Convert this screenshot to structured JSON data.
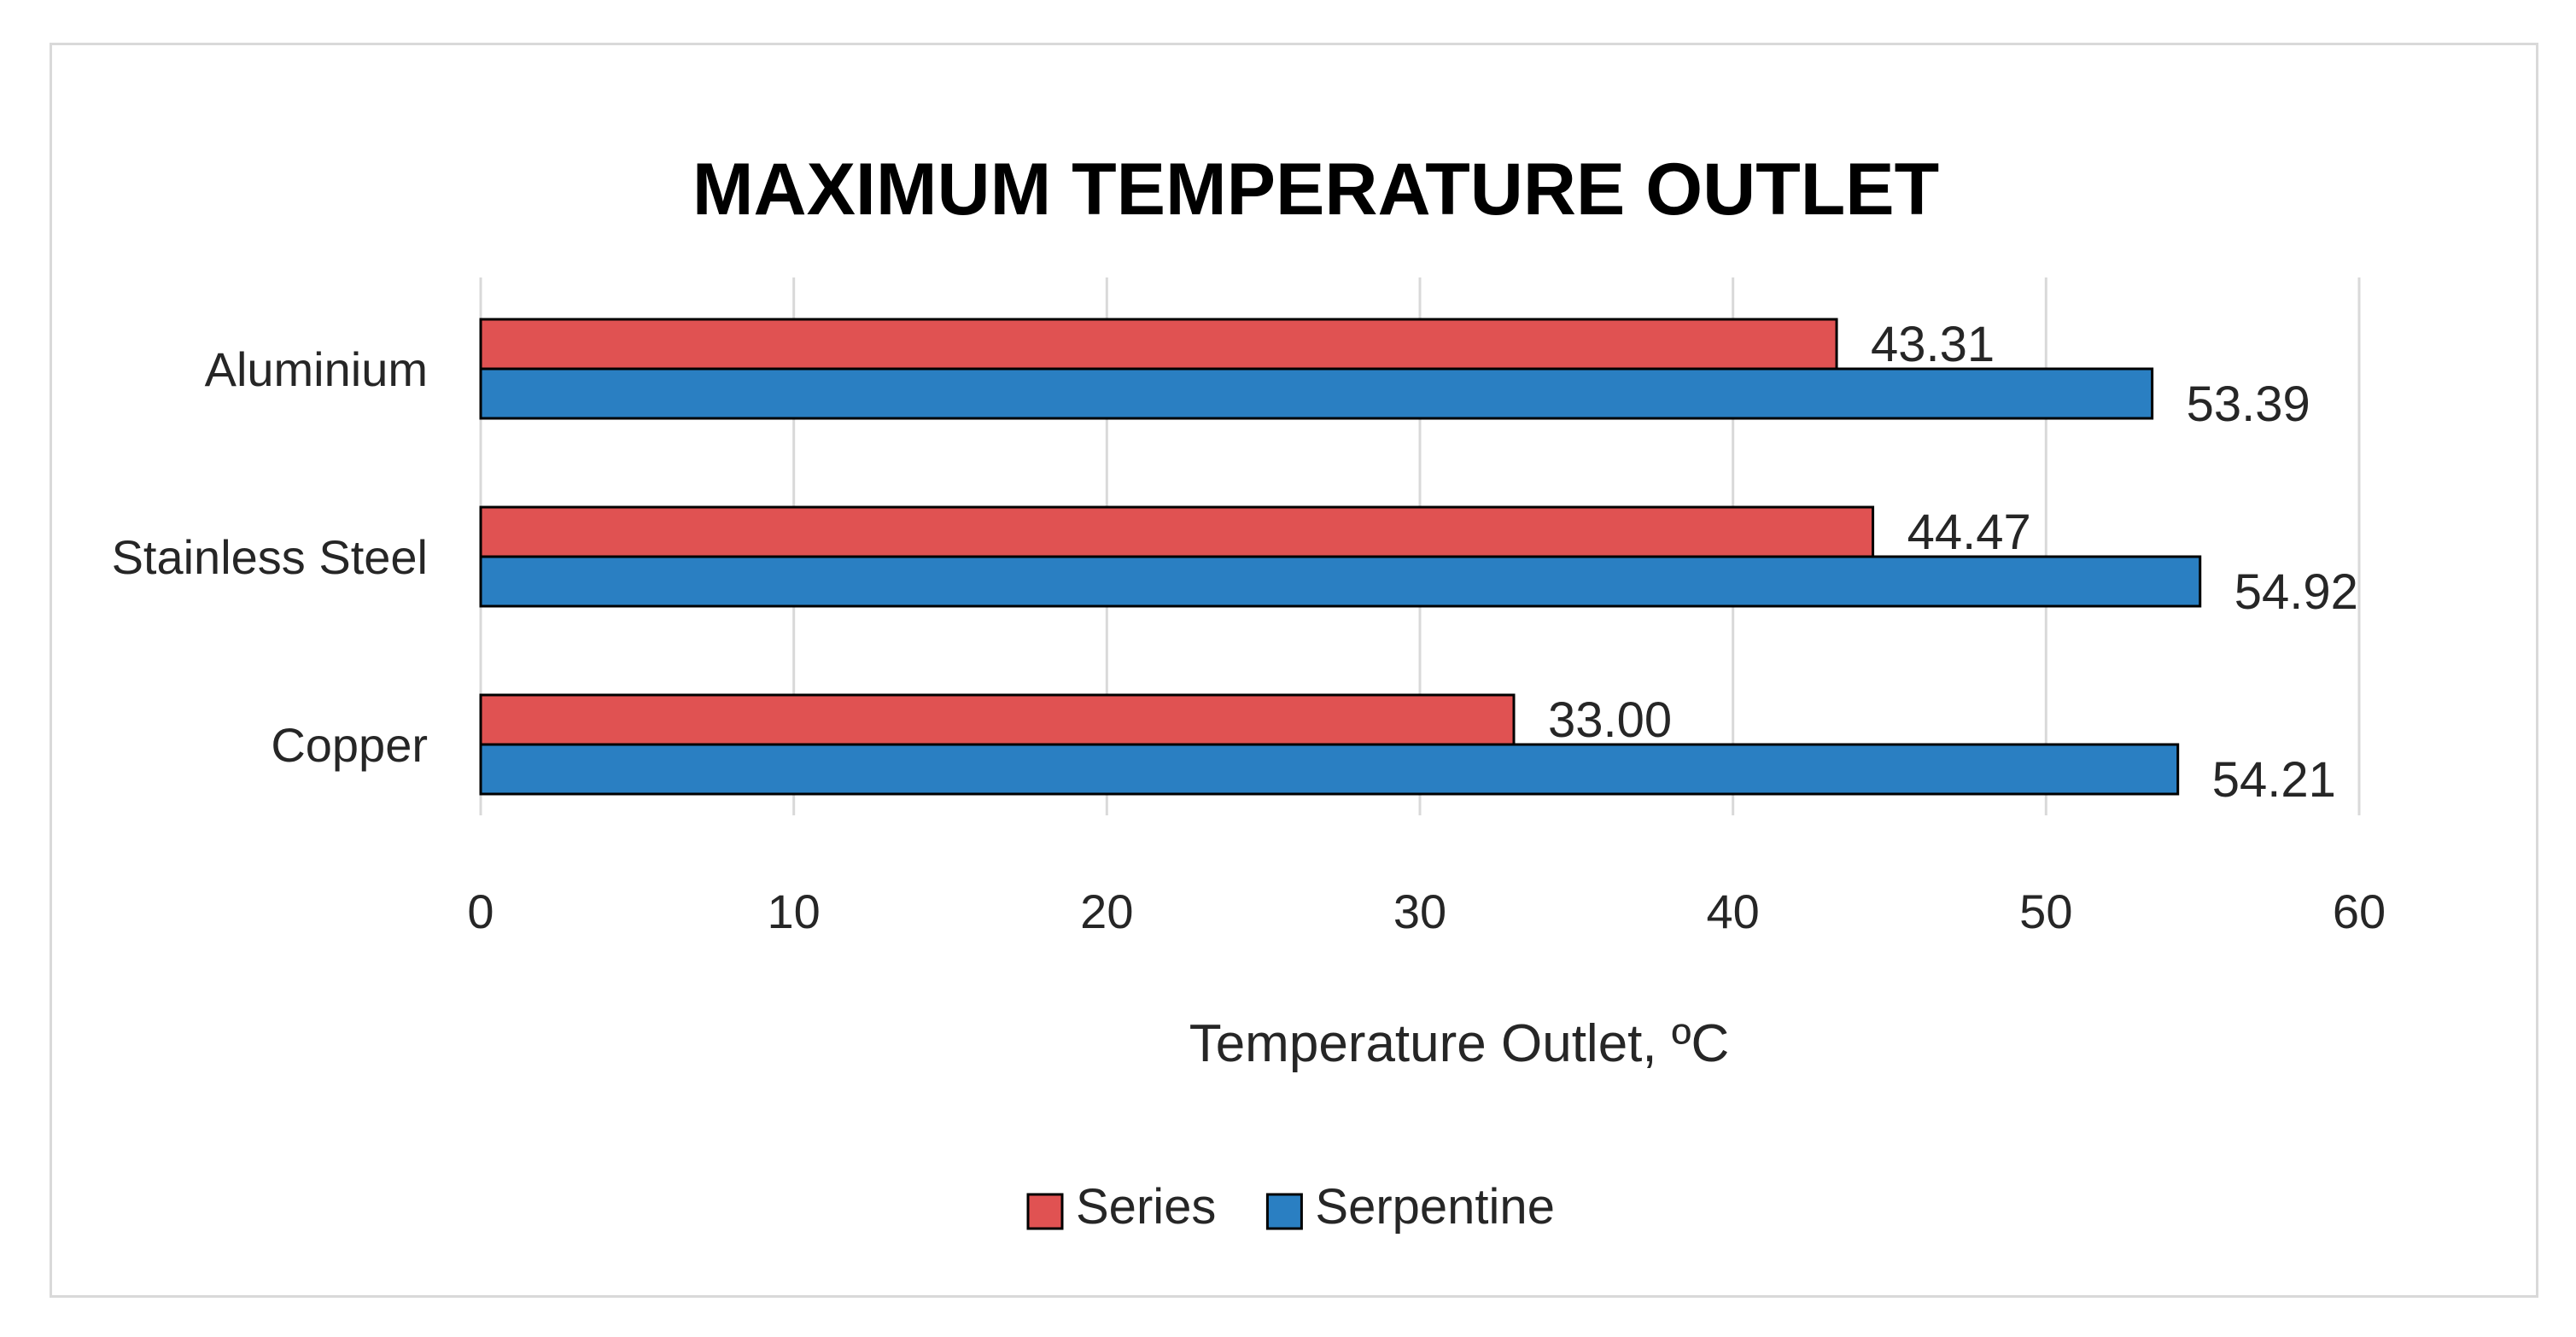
{
  "chart_data": {
    "type": "bar",
    "orientation": "horizontal",
    "title": "MAXIMUM TEMPERATURE OUTLET",
    "xlabel": "Temperature Outlet, ºC",
    "ylabel": "",
    "categories": [
      "Aluminium",
      "Stainless Steel",
      "Copper"
    ],
    "series": [
      {
        "name": "Series",
        "color": "#e05252",
        "values": [
          43.31,
          44.47,
          33.0
        ],
        "labels": [
          "43.31",
          "44.47",
          "33.00"
        ]
      },
      {
        "name": "Serpentine",
        "color": "#2a7fc2",
        "values": [
          53.39,
          54.92,
          54.21
        ],
        "labels": [
          "53.39",
          "54.92",
          "54.21"
        ]
      }
    ],
    "xlim": [
      0,
      60
    ],
    "xticks": [
      "0",
      "10",
      "20",
      "30",
      "40",
      "50",
      "60"
    ],
    "grid": "vertical",
    "legend": "bottom"
  }
}
